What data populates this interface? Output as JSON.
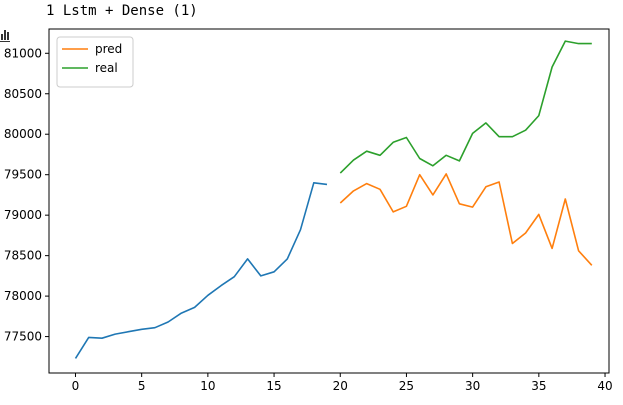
{
  "cell": {
    "heading": "1 Lstm + Dense (1)"
  },
  "chart_data": {
    "type": "line",
    "title": "",
    "xlabel": "",
    "ylabel": "",
    "xlim": [
      -2,
      40.3
    ],
    "ylim": [
      77050,
      81300
    ],
    "xticks": [
      0,
      5,
      10,
      15,
      20,
      25,
      30,
      35,
      40
    ],
    "yticks": [
      77500,
      78000,
      78500,
      79000,
      79500,
      80000,
      80500,
      81000
    ],
    "legend": {
      "placement": "top-left",
      "entries": [
        "pred",
        "real"
      ]
    },
    "grid": false,
    "series": [
      {
        "color": "#1f77b4",
        "x": [
          0,
          1,
          2,
          3,
          4,
          5,
          6,
          7,
          8,
          9,
          10,
          11,
          12,
          13,
          14,
          15,
          16,
          17,
          18,
          19
        ],
        "y": [
          77230,
          77490,
          77480,
          77530,
          77560,
          77590,
          77610,
          77680,
          77790,
          77860,
          78010,
          78130,
          78240,
          78460,
          78250,
          78300,
          78460,
          78820,
          79400,
          79380
        ]
      },
      {
        "name": "pred",
        "color": "#ff7f0e",
        "x": [
          20,
          21,
          22,
          23,
          24,
          25,
          26,
          27,
          28,
          29,
          30,
          31,
          32,
          33,
          34,
          35,
          36,
          37,
          38,
          39
        ],
        "y": [
          79150,
          79300,
          79390,
          79320,
          79040,
          79110,
          79500,
          79250,
          79510,
          79140,
          79100,
          79350,
          79410,
          78650,
          78780,
          79010,
          78590,
          79200,
          78560,
          78380
        ]
      },
      {
        "name": "real",
        "color": "#2ca02c",
        "x": [
          20,
          21,
          22,
          23,
          24,
          25,
          26,
          27,
          28,
          29,
          30,
          31,
          32,
          33,
          34,
          35,
          36,
          37,
          38,
          39
        ],
        "y": [
          79520,
          79680,
          79790,
          79740,
          79900,
          79960,
          79700,
          79610,
          79740,
          79670,
          80010,
          80140,
          79970,
          79970,
          80050,
          80230,
          80830,
          81150,
          81120,
          81120
        ]
      }
    ]
  }
}
